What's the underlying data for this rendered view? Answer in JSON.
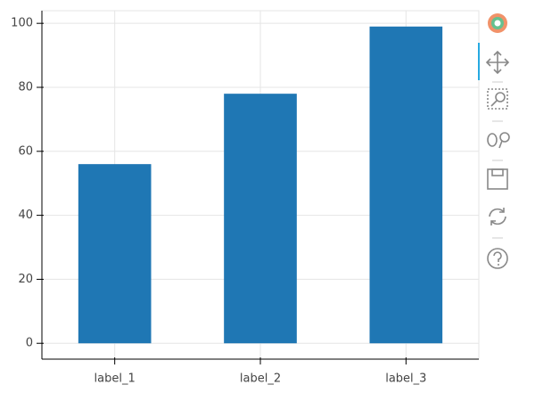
{
  "chart_data": {
    "type": "bar",
    "categories": [
      "label_1",
      "label_2",
      "label_3"
    ],
    "values": [
      56,
      78,
      99
    ],
    "color": "#1f77b4",
    "ylim": [
      -4.95,
      103.95
    ],
    "yticks": [
      0,
      20,
      40,
      60,
      80,
      100
    ],
    "grid": true
  }
}
